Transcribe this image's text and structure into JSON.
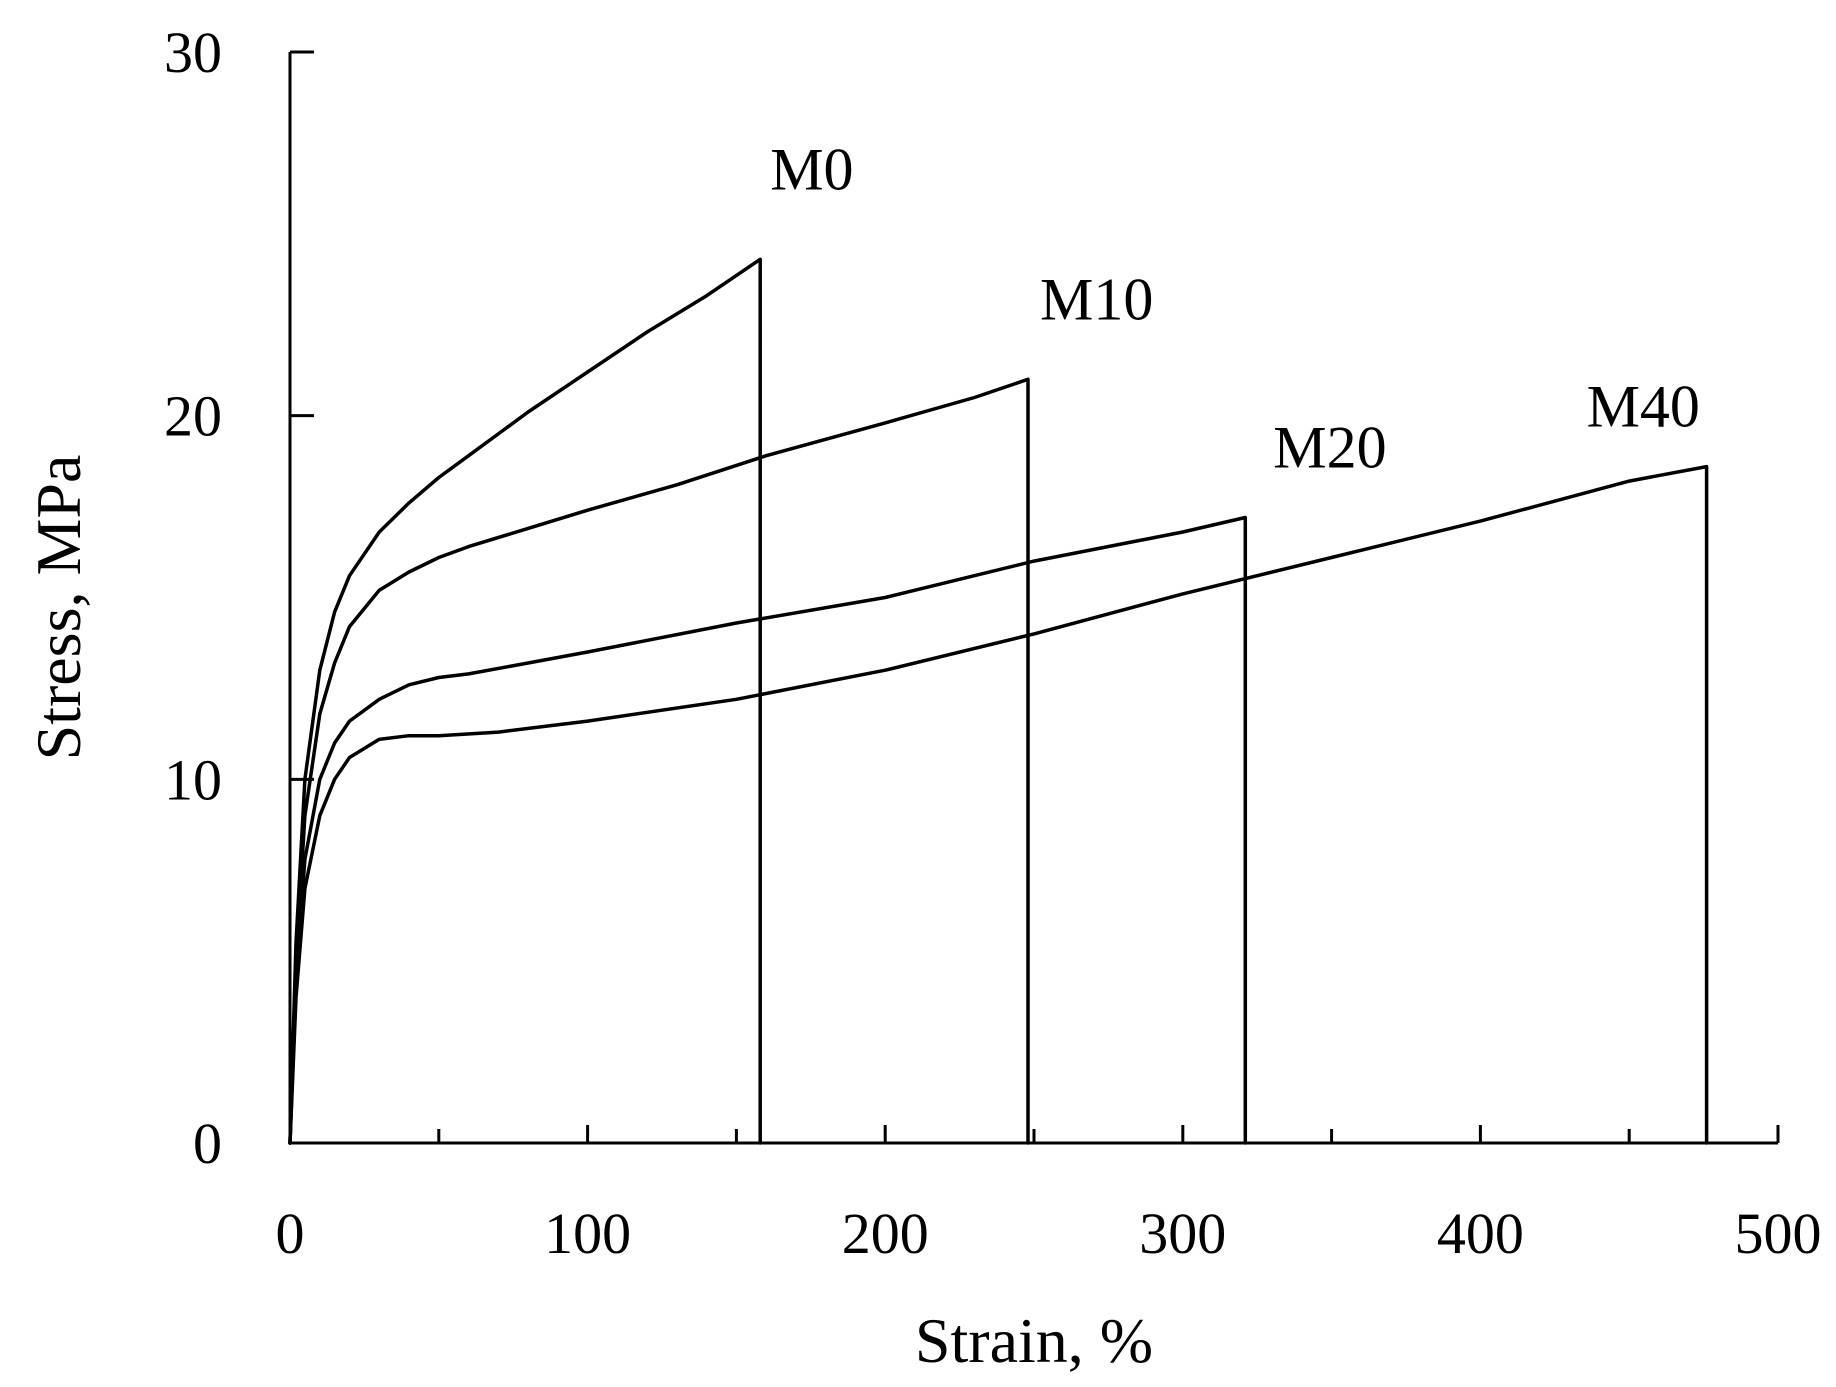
{
  "chart_data": {
    "type": "line",
    "title": "",
    "xlabel": "Strain, %",
    "ylabel": "Stress,  MPa",
    "xlim": [
      0,
      500
    ],
    "ylim": [
      0,
      30
    ],
    "xticks": [
      0,
      100,
      200,
      300,
      400,
      500
    ],
    "yticks": [
      0,
      10,
      20,
      30
    ],
    "x_minor_ticks": [
      50,
      150,
      250,
      350,
      450
    ],
    "grid": false,
    "legend": "none",
    "series": [
      {
        "name": "M0",
        "x": [
          0,
          2,
          5,
          10,
          15,
          20,
          30,
          40,
          50,
          60,
          70,
          80,
          100,
          120,
          140,
          158,
          158
        ],
        "y": [
          0,
          5.5,
          10.0,
          13.0,
          14.6,
          15.6,
          16.8,
          17.6,
          18.3,
          18.9,
          19.5,
          20.1,
          21.2,
          22.3,
          23.3,
          24.3,
          0
        ]
      },
      {
        "name": "M10",
        "x": [
          0,
          2,
          5,
          10,
          15,
          20,
          30,
          40,
          50,
          60,
          80,
          100,
          130,
          160,
          200,
          230,
          248,
          248
        ],
        "y": [
          0,
          5.0,
          9.0,
          11.8,
          13.2,
          14.2,
          15.2,
          15.7,
          16.1,
          16.4,
          16.9,
          17.4,
          18.1,
          18.9,
          19.8,
          20.5,
          21.0,
          0
        ]
      },
      {
        "name": "M20",
        "x": [
          0,
          2,
          5,
          10,
          15,
          20,
          30,
          40,
          50,
          60,
          80,
          100,
          150,
          200,
          250,
          300,
          321,
          321
        ],
        "y": [
          0,
          4.5,
          7.8,
          10.0,
          11.0,
          11.6,
          12.2,
          12.6,
          12.8,
          12.9,
          13.2,
          13.5,
          14.3,
          15.0,
          16.0,
          16.8,
          17.2,
          0
        ]
      },
      {
        "name": "M40",
        "x": [
          0,
          2,
          5,
          10,
          15,
          20,
          30,
          40,
          50,
          70,
          100,
          150,
          200,
          250,
          300,
          350,
          400,
          450,
          476,
          476
        ],
        "y": [
          0,
          4.0,
          7.0,
          9.0,
          10.0,
          10.6,
          11.1,
          11.2,
          11.2,
          11.3,
          11.6,
          12.2,
          13.0,
          14.0,
          15.1,
          16.1,
          17.1,
          18.2,
          18.6,
          0
        ]
      }
    ]
  }
}
